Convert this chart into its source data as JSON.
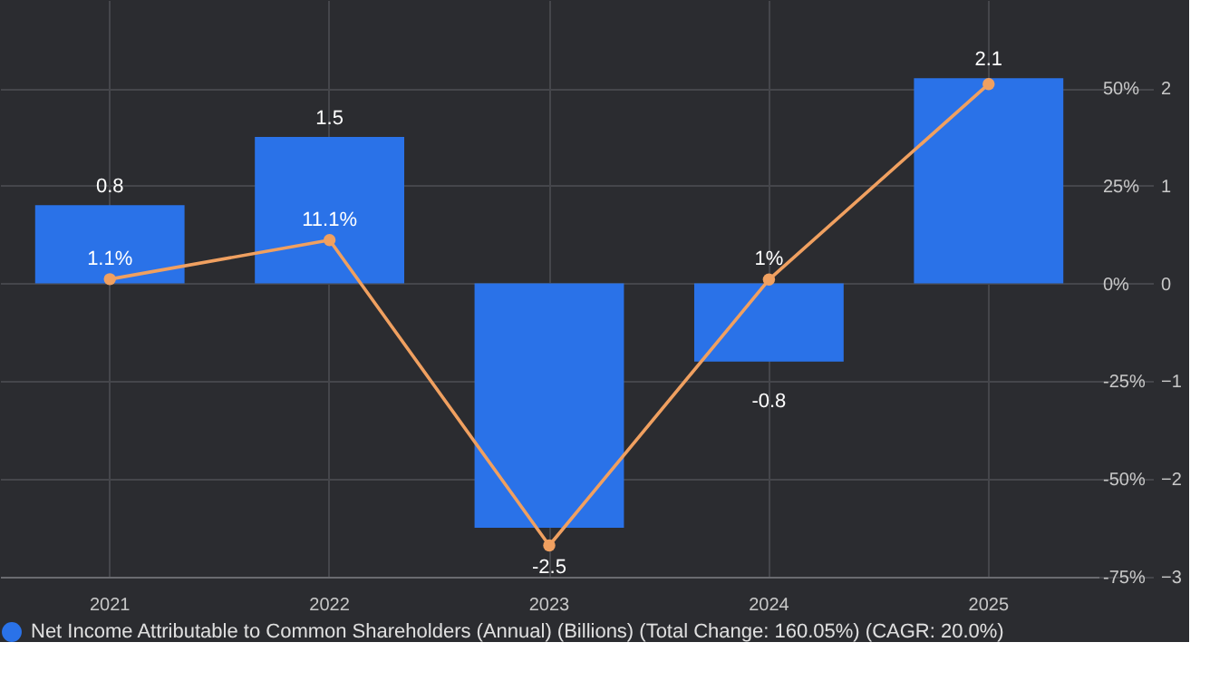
{
  "chart_data": {
    "type": "bar",
    "categories": [
      "2021",
      "2022",
      "2023",
      "2024",
      "2025"
    ],
    "series": [
      {
        "name": "Net Income Attributable to Common Shareholders (Annual) (Billions) (Total Change: 160.05%) (CAGR: 20.0%)",
        "color": "#2a72e8",
        "values": [
          0.8,
          1.5,
          -2.5,
          -0.8,
          2.1
        ]
      },
      {
        "type": "line",
        "axis": "y2",
        "color": "#f0a060",
        "values": [
          1.1,
          11.1,
          -67,
          1,
          51
        ],
        "value_labels": [
          "1.1%",
          "11.1%",
          null,
          "1%",
          null
        ]
      }
    ],
    "data_labels": true,
    "ylim": [
      -3,
      2.9
    ],
    "yticks": [
      -3,
      -2,
      -1,
      0,
      1,
      2
    ],
    "y2lim": [
      -75,
      72.5
    ],
    "y2ticks": [
      {
        "value": -75,
        "label": "-75%"
      },
      {
        "value": -50,
        "label": "-50%"
      },
      {
        "value": -25,
        "label": "-25%"
      },
      {
        "value": 0,
        "label": "0%"
      },
      {
        "value": 25,
        "label": "25%"
      },
      {
        "value": 50,
        "label": "50%"
      }
    ],
    "grid": true,
    "legend": "bottom",
    "marker": "circle",
    "line_style": "solid"
  }
}
